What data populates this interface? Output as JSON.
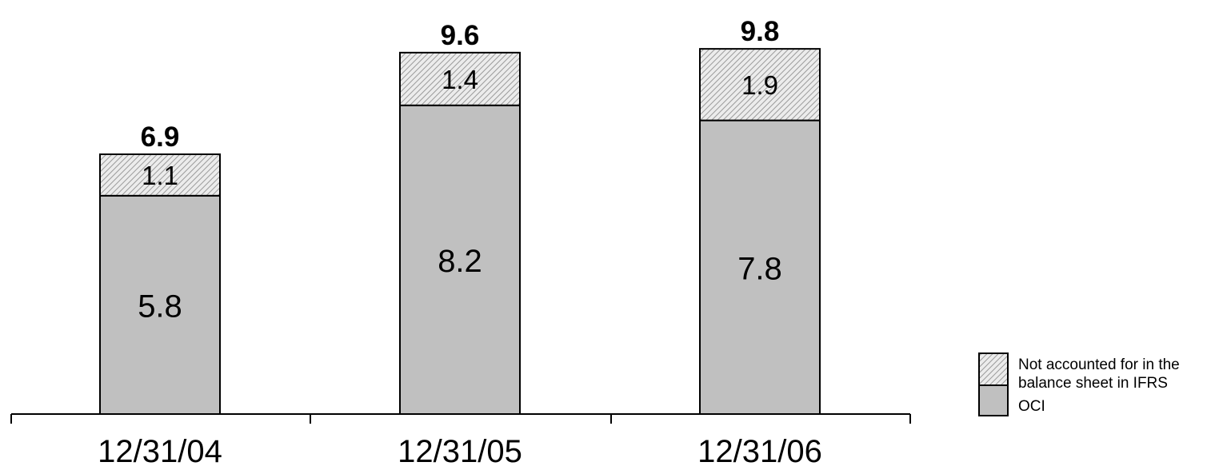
{
  "chart_data": {
    "type": "bar",
    "stacked": true,
    "categories": [
      "12/31/04",
      "12/31/05",
      "12/31/06"
    ],
    "series": [
      {
        "name": "OCI",
        "values": [
          5.8,
          8.2,
          7.8
        ],
        "color": "#c0c0c0",
        "pattern": "solid"
      },
      {
        "name": "Not accounted for in the balance sheet in IFRS",
        "values": [
          1.1,
          1.4,
          1.9
        ],
        "color": "#d9d9d9",
        "pattern": "hatched"
      }
    ],
    "totals": [
      "6.9",
      "9.6",
      "9.8"
    ],
    "value_labels": {
      "OCI": [
        "5.8",
        "8.2",
        "7.8"
      ],
      "Not accounted for in the balance sheet in IFRS": [
        "1.1",
        "1.4",
        "1.9"
      ]
    },
    "ylim": [
      0,
      9.8
    ],
    "grid": false,
    "legend": {
      "position": "bottom-right",
      "entries": [
        {
          "label": "Not accounted for in the balance sheet in IFRS",
          "line1": "Not accounted for in the",
          "line2": "balance sheet in IFRS",
          "pattern": "hatched"
        },
        {
          "label": "OCI",
          "pattern": "solid"
        }
      ]
    },
    "title": "",
    "xlabel": "",
    "ylabel": ""
  }
}
